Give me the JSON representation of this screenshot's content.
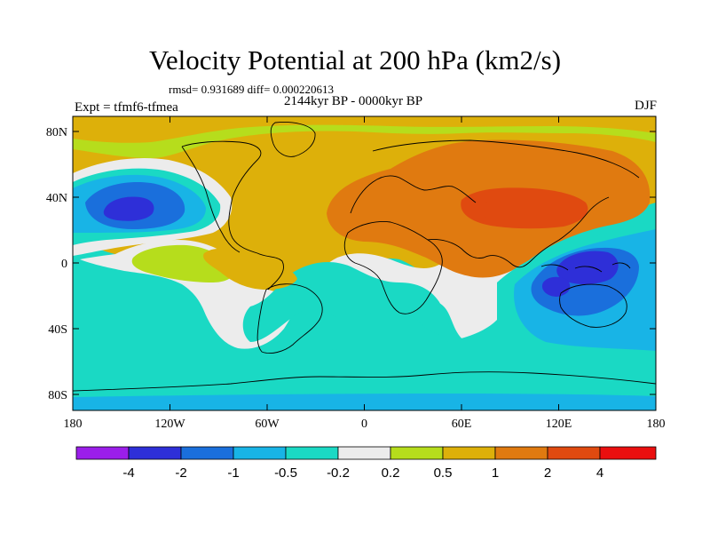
{
  "header": {
    "title": "Velocity Potential at 200 hPa (km2/s)",
    "stats": "rmsd= 0.931689 diff= 0.000220613",
    "experiment": "Expt = tfmf6-tfmea",
    "period": "2144kyr BP - 0000kyr BP",
    "season": "DJF"
  },
  "axes": {
    "lat_ticks": [
      "80N",
      "40N",
      "0",
      "40S",
      "80S"
    ],
    "lon_ticks": [
      "180",
      "120W",
      "60W",
      "0",
      "60E",
      "120E",
      "180"
    ]
  },
  "colorbar": {
    "colors": [
      "#9b1eea",
      "#2e2fd8",
      "#1a6fdc",
      "#18b4e6",
      "#1ad9c4",
      "#ececec",
      "#b6dd1c",
      "#ddb00a",
      "#e07a10",
      "#e04a10",
      "#ea0f0f"
    ],
    "labels": [
      "-4",
      "-2",
      "-1",
      "-0.5",
      "-0.2",
      "0.2",
      "0.5",
      "1",
      "2",
      "4"
    ]
  },
  "map_colors": {
    "neg_extreme": "#2e2fd8",
    "neg_strong": "#1a6fdc",
    "neg_medium": "#18b4e6",
    "neg_weak": "#1ad9c4",
    "neutral": "#ececec",
    "pos_weak": "#b6dd1c",
    "pos_medium": "#ddb00a",
    "pos_strong": "#e07a10",
    "pos_extreme": "#e04a10"
  }
}
